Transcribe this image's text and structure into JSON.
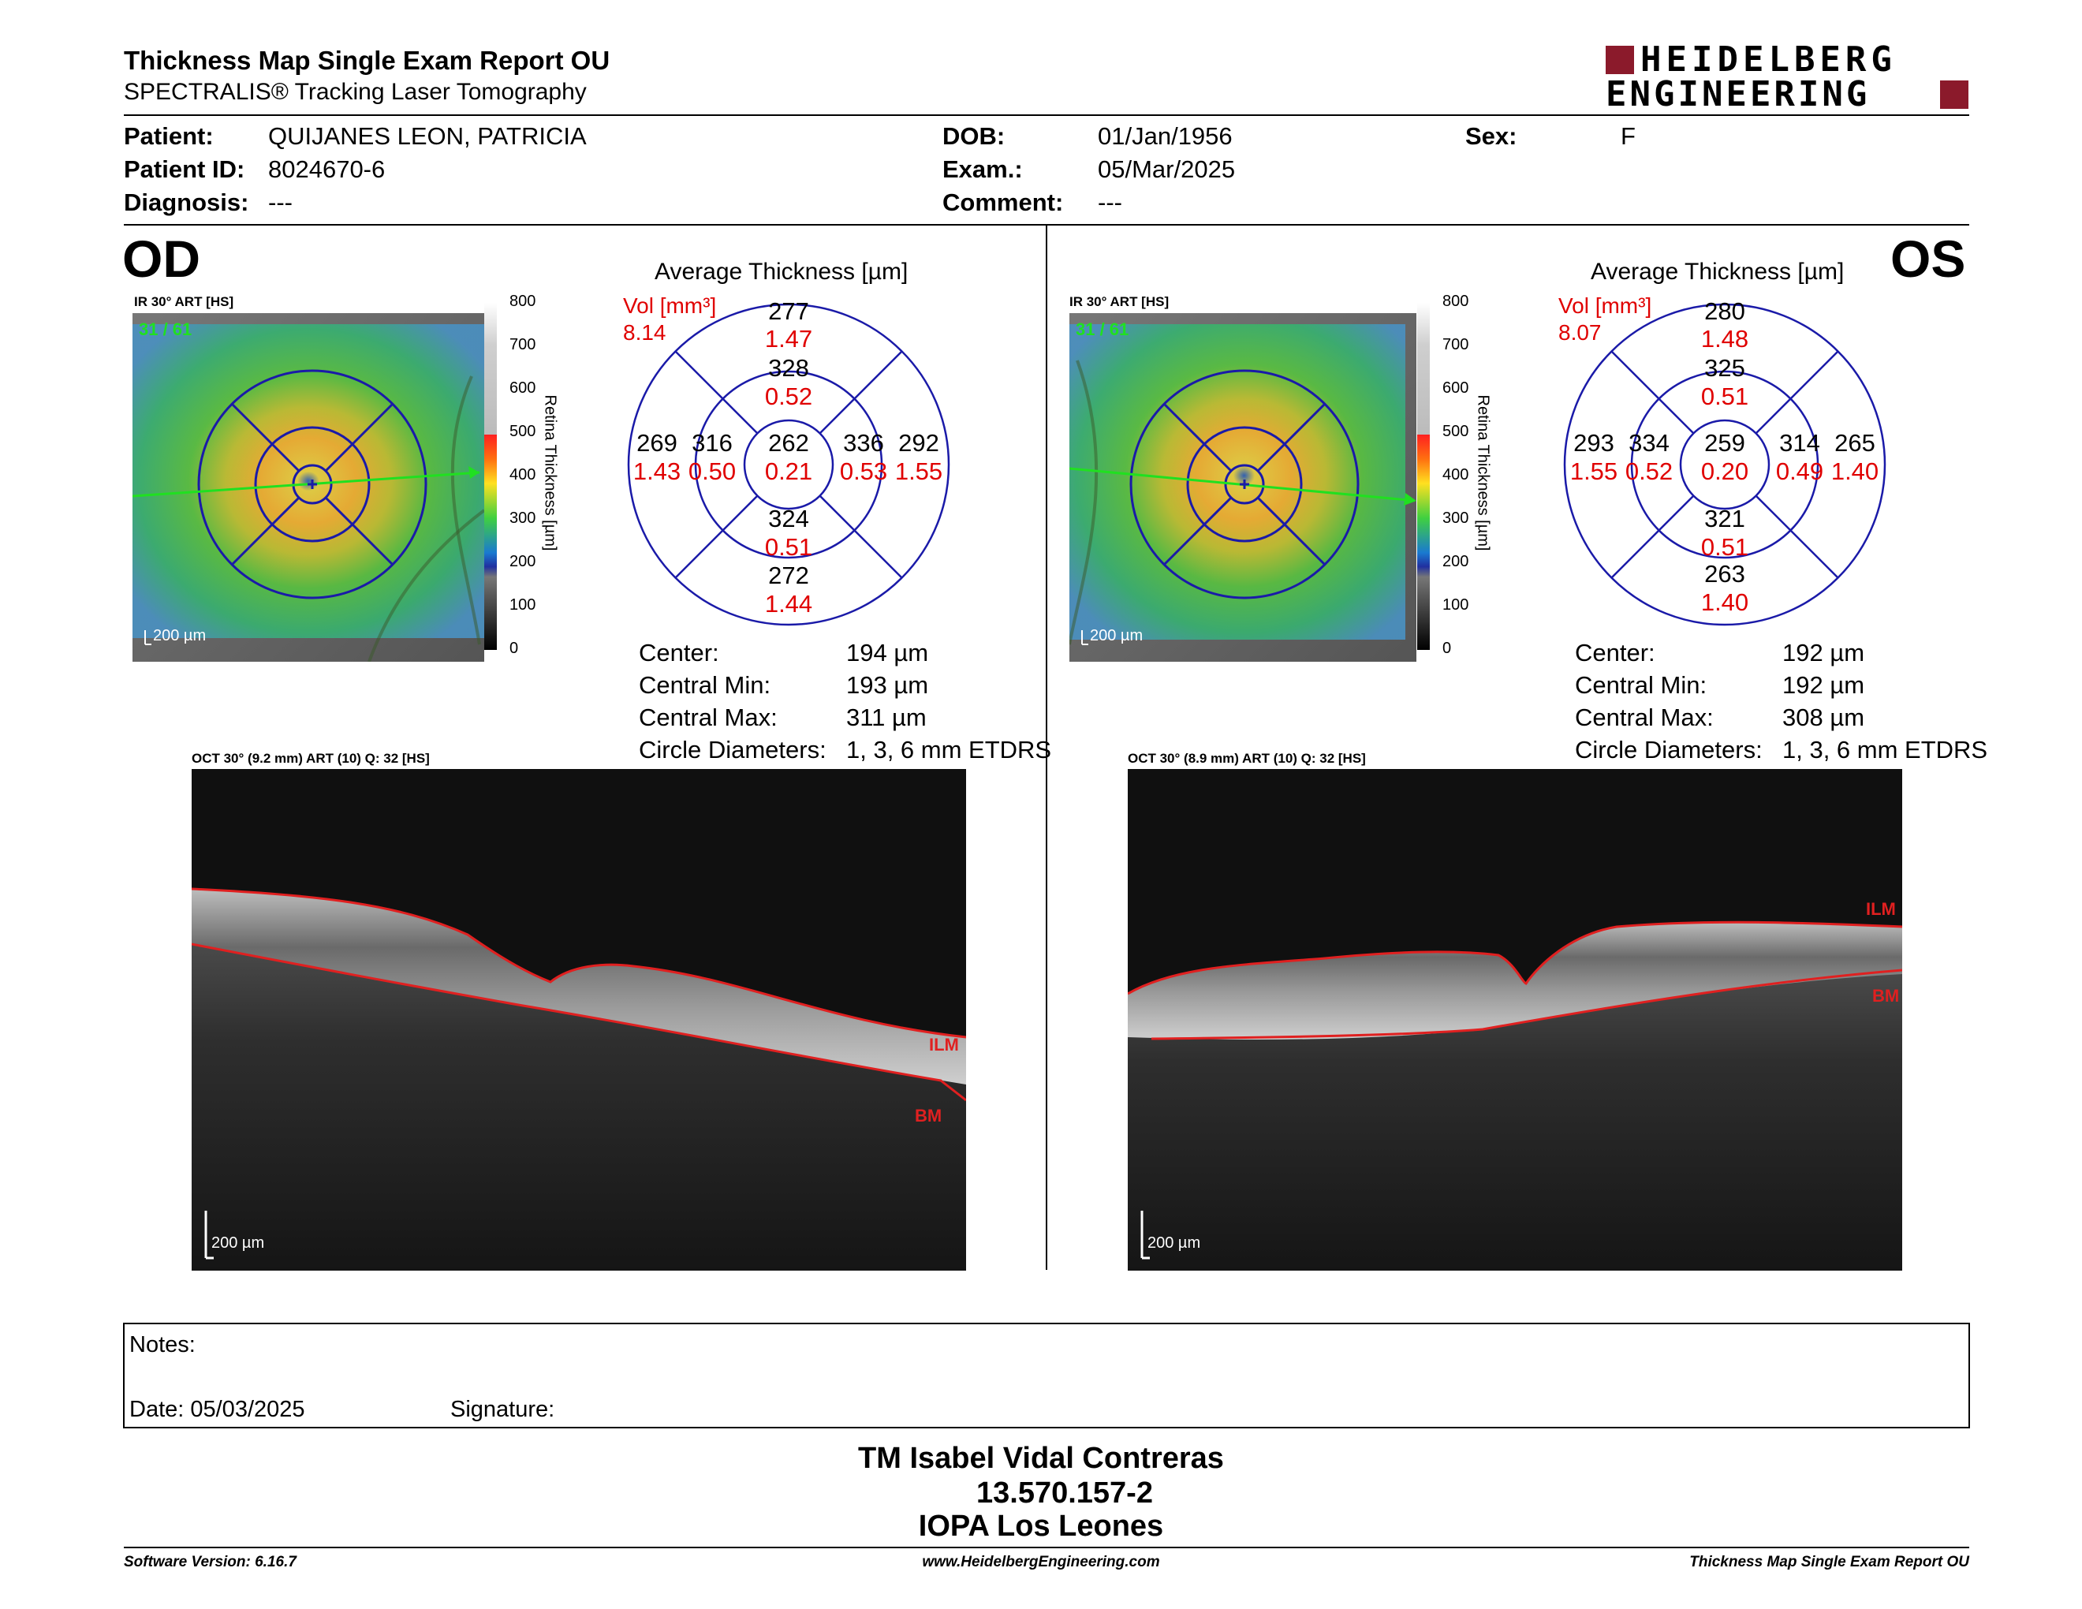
{
  "header": {
    "title": "Thickness Map Single Exam Report OU",
    "subtitle": "SPECTRALIS® Tracking Laser Tomography",
    "logo_line1": "HEIDELBERG",
    "logo_line2": "ENGINEERING"
  },
  "patient": {
    "patient_label": "Patient:",
    "patient_value": "QUIJANES LEON, PATRICIA",
    "id_label": "Patient ID:",
    "id_value": "8024670-6",
    "diagnosis_label": "Diagnosis:",
    "diagnosis_value": "---",
    "dob_label": "DOB:",
    "dob_value": "01/Jan/1956",
    "exam_label": "Exam.:",
    "exam_value": "05/Mar/2025",
    "comment_label": "Comment:",
    "comment_value": "---",
    "sex_label": "Sex:",
    "sex_value": "F"
  },
  "scale": {
    "ticks": [
      "800",
      "700",
      "600",
      "500",
      "400",
      "300",
      "200",
      "100",
      "0"
    ],
    "title": "Retina Thickness [µm]"
  },
  "od": {
    "eye": "OD",
    "ir_label": "IR 30° ART [HS]",
    "frame": "31 / 61",
    "scalebar": "200 µm",
    "grid_title": "Average Thickness [µm]",
    "vol_label": "Vol [mm³]",
    "vol_value": "8.14",
    "sectors": {
      "center": [
        "262",
        "0.21"
      ],
      "inner_sup": [
        "328",
        "0.52"
      ],
      "inner_inf": [
        "324",
        "0.51"
      ],
      "inner_temp": [
        "316",
        "0.50"
      ],
      "inner_nas": [
        "336",
        "0.53"
      ],
      "outer_sup": [
        "277",
        "1.47"
      ],
      "outer_inf": [
        "272",
        "1.44"
      ],
      "outer_temp": [
        "269",
        "1.43"
      ],
      "outer_nas": [
        "292",
        "1.55"
      ]
    },
    "stats": {
      "center_label": "Center:",
      "center_value": "194 µm",
      "min_label": "Central Min:",
      "min_value": "193 µm",
      "max_label": "Central Max:",
      "max_value": "311 µm",
      "circ_label": "Circle Diameters:",
      "circ_value": "1, 3, 6 mm ETDRS"
    },
    "oct_label": "OCT 30° (9.2 mm) ART (10) Q: 32 [HS]",
    "oct_scalebar": "200 µm",
    "ilm": "ILM",
    "bm": "BM"
  },
  "os": {
    "eye": "OS",
    "ir_label": "IR 30° ART [HS]",
    "frame": "31 / 61",
    "scalebar": "200 µm",
    "grid_title": "Average Thickness [µm]",
    "vol_label": "Vol [mm³]",
    "vol_value": "8.07",
    "sectors": {
      "center": [
        "259",
        "0.20"
      ],
      "inner_sup": [
        "325",
        "0.51"
      ],
      "inner_inf": [
        "321",
        "0.51"
      ],
      "inner_temp": [
        "314",
        "0.49"
      ],
      "inner_nas": [
        "334",
        "0.52"
      ],
      "outer_sup": [
        "280",
        "1.48"
      ],
      "outer_inf": [
        "263",
        "1.40"
      ],
      "outer_temp": [
        "265",
        "1.40"
      ],
      "outer_nas": [
        "293",
        "1.55"
      ]
    },
    "stats": {
      "center_label": "Center:",
      "center_value": "192 µm",
      "min_label": "Central Min:",
      "min_value": "192 µm",
      "max_label": "Central Max:",
      "max_value": "308 µm",
      "circ_label": "Circle Diameters:",
      "circ_value": "1, 3, 6 mm ETDRS"
    },
    "oct_label": "OCT 30° (8.9 mm) ART (10) Q: 32 [HS]",
    "oct_scalebar": "200 µm",
    "ilm": "ILM",
    "bm": "BM"
  },
  "notes": {
    "notes_label": "Notes:",
    "date_label": "Date: 05/03/2025",
    "signature_label": "Signature:"
  },
  "signature_block": {
    "name": "TM Isabel Vidal Contreras",
    "rut": "13.570.157-2",
    "clinic": "IOPA Los Leones"
  },
  "footer": {
    "software": "Software Version: 6.16.7",
    "website": "www.HeidelbergEngineering.com",
    "report": "Thickness Map Single Exam Report OU"
  },
  "colors": {
    "accent_red": "#8b1a2b",
    "grid_blue": "#1a1aa8",
    "vol_red": "#e00000"
  }
}
